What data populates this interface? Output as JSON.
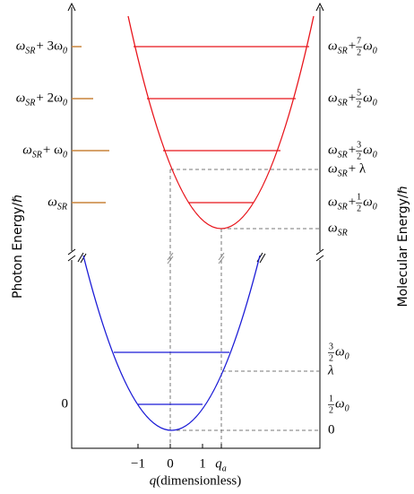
{
  "left_labels": [
    {
      "parts": [
        {
          "t": "ω"
        },
        {
          "sub": "SR"
        },
        {
          "t": " + 3ω"
        },
        {
          "sub": "0"
        }
      ]
    },
    {
      "parts": [
        {
          "t": "ω"
        },
        {
          "sub": "SR"
        },
        {
          "t": " + 2ω"
        },
        {
          "sub": "0"
        }
      ]
    },
    {
      "parts": [
        {
          "t": "ω"
        },
        {
          "sub": "SR"
        },
        {
          "t": " + ω"
        },
        {
          "sub": "0"
        }
      ]
    },
    {
      "parts": [
        {
          "t": "ω"
        },
        {
          "sub": "SR"
        }
      ]
    },
    {
      "parts": [
        {
          "t": "0"
        }
      ]
    }
  ],
  "right_labels": [
    {
      "parts": [
        {
          "t": "ω"
        },
        {
          "sub": "SR"
        },
        {
          "t": " + "
        },
        {
          "num": "7",
          "den": "2"
        },
        {
          "t": "ω"
        },
        {
          "sub": "0"
        }
      ]
    },
    {
      "parts": [
        {
          "t": "ω"
        },
        {
          "sub": "SR"
        },
        {
          "t": " + "
        },
        {
          "num": "5",
          "den": "2"
        },
        {
          "t": "ω"
        },
        {
          "sub": "0"
        }
      ]
    },
    {
      "parts": [
        {
          "t": "ω"
        },
        {
          "sub": "SR"
        },
        {
          "t": " + "
        },
        {
          "num": "3",
          "den": "2"
        },
        {
          "t": "ω"
        },
        {
          "sub": "0"
        }
      ]
    },
    {
      "parts": [
        {
          "t": "ω"
        },
        {
          "sub": "SR"
        },
        {
          "t": " + λ"
        }
      ]
    },
    {
      "parts": [
        {
          "t": "ω"
        },
        {
          "sub": "SR"
        },
        {
          "t": " + "
        },
        {
          "num": "1",
          "den": "2"
        },
        {
          "t": "ω"
        },
        {
          "sub": "0"
        }
      ]
    },
    {
      "parts": [
        {
          "t": "ω"
        },
        {
          "sub": "SR"
        }
      ]
    },
    {
      "parts": [
        {
          "num": "3",
          "den": "2"
        },
        {
          "t": "ω"
        },
        {
          "sub": "0"
        }
      ]
    },
    {
      "parts": [
        {
          "t": "λ"
        }
      ]
    },
    {
      "parts": [
        {
          "num": "1",
          "den": "2"
        },
        {
          "t": "ω"
        },
        {
          "sub": "0"
        }
      ]
    },
    {
      "parts": [
        {
          "t": "0"
        }
      ]
    }
  ],
  "x_ticks": [
    {
      "parts": [
        {
          "t": "−1"
        }
      ]
    },
    {
      "parts": [
        {
          "t": "0"
        }
      ]
    },
    {
      "parts": [
        {
          "t": "1"
        }
      ]
    },
    {
      "parts": [
        {
          "t": "q"
        },
        {
          "sub": "a"
        }
      ]
    }
  ],
  "x_axis_label": {
    "parts": [
      {
        "t": "q"
      },
      {
        "t": " (dimensionless)"
      }
    ]
  },
  "left_axis_title": "Photon Energy/ℏ",
  "right_axis_title": "Molecular Energy/ℏ"
}
